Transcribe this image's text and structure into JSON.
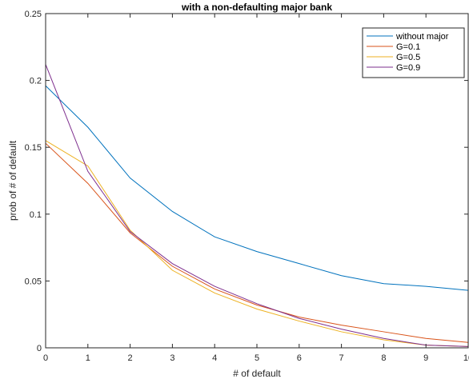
{
  "chart_data": {
    "type": "line",
    "title": "with a non-defaulting major bank",
    "xlabel": "# of default",
    "ylabel": "prob of # of default",
    "x": [
      0,
      1,
      2,
      3,
      4,
      5,
      6,
      7,
      8,
      9,
      10
    ],
    "xlim": [
      0,
      10
    ],
    "ylim": [
      0,
      0.25
    ],
    "xticks": [
      "0",
      "1",
      "2",
      "3",
      "4",
      "5",
      "6",
      "7",
      "8",
      "9",
      "10"
    ],
    "yticks": [
      "0",
      "0.05",
      "0.1",
      "0.15",
      "0.2",
      "0.25"
    ],
    "ytick_values": [
      0,
      0.05,
      0.1,
      0.15,
      0.2,
      0.25
    ],
    "grid": false,
    "legend_position": "top-right",
    "series": [
      {
        "name": "without major",
        "color": "#0072BD",
        "values": [
          0.196,
          0.165,
          0.127,
          0.102,
          0.083,
          0.072,
          0.063,
          0.054,
          0.048,
          0.046,
          0.043
        ]
      },
      {
        "name": "G=0.1",
        "color": "#D95319",
        "values": [
          0.153,
          0.123,
          0.086,
          0.061,
          0.044,
          0.032,
          0.023,
          0.017,
          0.012,
          0.007,
          0.004
        ]
      },
      {
        "name": "G=0.5",
        "color": "#EDB120",
        "values": [
          0.155,
          0.136,
          0.088,
          0.058,
          0.041,
          0.029,
          0.02,
          0.012,
          0.006,
          0.002,
          0.001
        ]
      },
      {
        "name": "G=0.9",
        "color": "#7E2F8E",
        "values": [
          0.212,
          0.132,
          0.087,
          0.063,
          0.046,
          0.033,
          0.022,
          0.014,
          0.007,
          0.002,
          0.001
        ]
      }
    ]
  }
}
